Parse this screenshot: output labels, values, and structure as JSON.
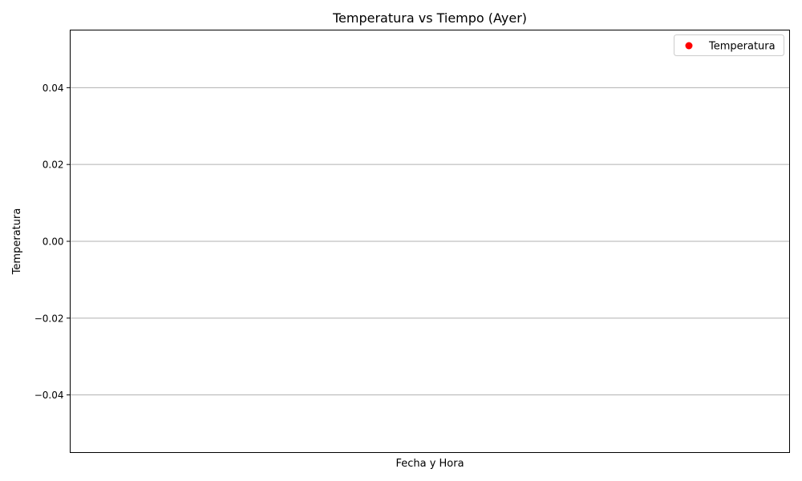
{
  "chart_data": {
    "type": "scatter",
    "title": "Temperatura vs Tiempo (Ayer)",
    "xlabel": "Fecha y Hora",
    "ylabel": "Temperatura",
    "x": [],
    "series": [
      {
        "name": "Temperatura",
        "values": [],
        "color": "#ff0000"
      }
    ],
    "ylim": [
      -0.055,
      0.055
    ],
    "yticks": [
      0.04,
      0.02,
      0.0,
      -0.02,
      -0.04
    ],
    "ytick_labels": [
      "0.04",
      "0.02",
      "0.00",
      "−0.02",
      "−0.04"
    ],
    "xticks": [],
    "grid": "y-axis only",
    "legend_position": "top-right"
  }
}
